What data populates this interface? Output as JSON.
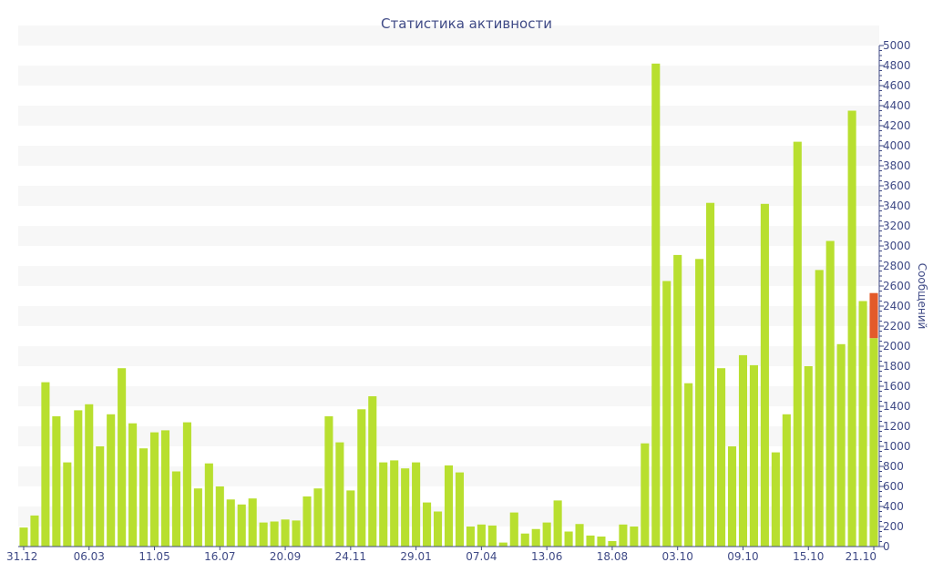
{
  "chart_data": {
    "type": "bar",
    "title": "Статистика активности",
    "xlabel": "",
    "ylabel": "Сообщений",
    "ylim": [
      0,
      5000
    ],
    "yticks": [
      0,
      200,
      400,
      600,
      800,
      1000,
      1200,
      1400,
      1600,
      1800,
      2000,
      2200,
      2400,
      2600,
      2800,
      3000,
      3200,
      3400,
      3600,
      3800,
      4000,
      4200,
      4400,
      4600,
      4800,
      5000
    ],
    "x_tick_labels": [
      "31.12",
      "06.03",
      "11.05",
      "16.07",
      "20.09",
      "24.11",
      "29.01",
      "07.04",
      "13.06",
      "18.08",
      "03.10",
      "09.10",
      "15.10",
      "21.10"
    ],
    "grid": "horizontal bands",
    "colors": {
      "bar": "#b8df2f",
      "highlight": "#e35a2a",
      "band": "#f7f7f7",
      "text": "#3f4a86"
    },
    "values": [
      190,
      310,
      1640,
      1300,
      840,
      1360,
      1420,
      1000,
      1320,
      1780,
      1230,
      980,
      1140,
      1160,
      750,
      1240,
      580,
      830,
      600,
      470,
      420,
      480,
      240,
      250,
      270,
      260,
      500,
      580,
      1300,
      1040,
      560,
      1370,
      1500,
      840,
      860,
      780,
      840,
      440,
      350,
      810,
      740,
      200,
      220,
      210,
      40,
      340,
      130,
      175,
      240,
      460,
      150,
      225,
      110,
      100,
      55,
      220,
      200,
      1030,
      4820,
      2650,
      2910,
      1630,
      2870,
      3430,
      1780,
      1000,
      1910,
      1810,
      3420,
      940,
      1320,
      4040,
      1800,
      2760,
      3050,
      2020,
      4350,
      2450,
      2080
    ],
    "highlight": {
      "index": 78,
      "base": 2080,
      "top": 2530
    }
  }
}
